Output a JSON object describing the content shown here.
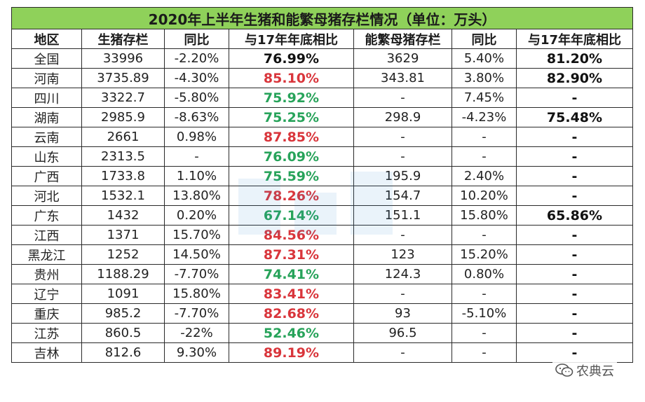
{
  "chart_data": {
    "type": "table",
    "title": "2020年上半年生猪和能繁母猪存栏情况（单位：万头）",
    "columns": [
      "地区",
      "生猪存栏",
      "同比",
      "与17年年底相比",
      "能繁母猪存栏",
      "同比",
      "与17年年底相比"
    ],
    "rows": [
      {
        "region": "全国",
        "hog": "33996",
        "hog_yoy": "-2.20%",
        "hog_vs17": "76.99%",
        "hog_vs17_color": "black",
        "sow": "3629",
        "sow_yoy": "5.40%",
        "sow_vs17": "81.20%"
      },
      {
        "region": "河南",
        "hog": "3735.89",
        "hog_yoy": "-4.30%",
        "hog_vs17": "85.10%",
        "hog_vs17_color": "red",
        "sow": "343.81",
        "sow_yoy": "3.80%",
        "sow_vs17": "82.90%"
      },
      {
        "region": "四川",
        "hog": "3322.7",
        "hog_yoy": "-5.80%",
        "hog_vs17": "75.92%",
        "hog_vs17_color": "green",
        "sow": "-",
        "sow_yoy": "7.45%",
        "sow_vs17": "-"
      },
      {
        "region": "湖南",
        "hog": "2985.9",
        "hog_yoy": "-8.63%",
        "hog_vs17": "75.25%",
        "hog_vs17_color": "green",
        "sow": "298.9",
        "sow_yoy": "-4.23%",
        "sow_vs17": "75.48%"
      },
      {
        "region": "云南",
        "hog": "2661",
        "hog_yoy": "0.98%",
        "hog_vs17": "87.85%",
        "hog_vs17_color": "red",
        "sow": "-",
        "sow_yoy": "-",
        "sow_vs17": "-"
      },
      {
        "region": "山东",
        "hog": "2313.5",
        "hog_yoy": "-",
        "hog_vs17": "76.09%",
        "hog_vs17_color": "green",
        "sow": "-",
        "sow_yoy": "-",
        "sow_vs17": "-"
      },
      {
        "region": "广西",
        "hog": "1733.8",
        "hog_yoy": "1.10%",
        "hog_vs17": "75.59%",
        "hog_vs17_color": "green",
        "sow": "195.9",
        "sow_yoy": "2.40%",
        "sow_vs17": "-"
      },
      {
        "region": "河北",
        "hog": "1532.1",
        "hog_yoy": "13.80%",
        "hog_vs17": "78.26%",
        "hog_vs17_color": "red",
        "sow": "154.7",
        "sow_yoy": "10.20%",
        "sow_vs17": "-"
      },
      {
        "region": "广东",
        "hog": "1432",
        "hog_yoy": "0.20%",
        "hog_vs17": "67.14%",
        "hog_vs17_color": "green",
        "sow": "151.1",
        "sow_yoy": "15.80%",
        "sow_vs17": "65.86%"
      },
      {
        "region": "江西",
        "hog": "1371",
        "hog_yoy": "15.70%",
        "hog_vs17": "84.56%",
        "hog_vs17_color": "red",
        "sow": "-",
        "sow_yoy": "-",
        "sow_vs17": "-"
      },
      {
        "region": "黑龙江",
        "hog": "1252",
        "hog_yoy": "14.50%",
        "hog_vs17": "87.31%",
        "hog_vs17_color": "red",
        "sow": "123",
        "sow_yoy": "15.20%",
        "sow_vs17": "-"
      },
      {
        "region": "贵州",
        "hog": "1188.29",
        "hog_yoy": "-7.70%",
        "hog_vs17": "74.41%",
        "hog_vs17_color": "green",
        "sow": "124.3",
        "sow_yoy": "0.80%",
        "sow_vs17": "-"
      },
      {
        "region": "辽宁",
        "hog": "1091",
        "hog_yoy": "15.80%",
        "hog_vs17": "83.41%",
        "hog_vs17_color": "red",
        "sow": "-",
        "sow_yoy": "-",
        "sow_vs17": "-"
      },
      {
        "region": "重庆",
        "hog": "985.2",
        "hog_yoy": "-7.70%",
        "hog_vs17": "82.68%",
        "hog_vs17_color": "red",
        "sow": "93",
        "sow_yoy": "-5.10%",
        "sow_vs17": "-"
      },
      {
        "region": "江苏",
        "hog": "860.5",
        "hog_yoy": "-22%",
        "hog_vs17": "52.46%",
        "hog_vs17_color": "green",
        "sow": "96.5",
        "sow_yoy": "-",
        "sow_vs17": "-"
      },
      {
        "region": "吉林",
        "hog": "812.6",
        "hog_yoy": "9.30%",
        "hog_vs17": "89.19%",
        "hog_vs17_color": "red",
        "sow": "-",
        "sow_yoy": "-",
        "sow_vs17": "-"
      }
    ]
  },
  "colors": {
    "title_bg": "#8fd15a",
    "red": "#d9353b",
    "green": "#27a35a",
    "black": "#111111"
  },
  "watermark": {
    "text": "农典云",
    "icon": "wechat-icon"
  }
}
